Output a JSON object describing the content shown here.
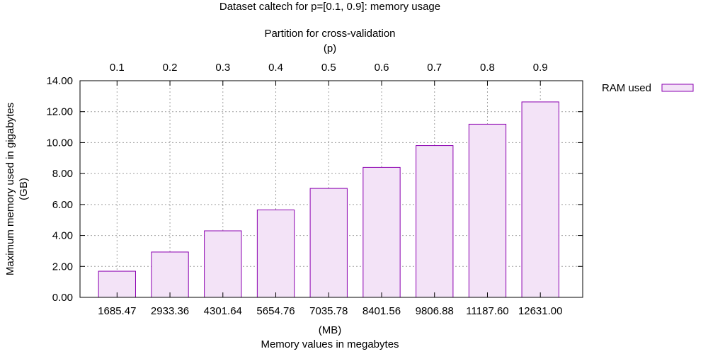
{
  "chart_data": {
    "type": "bar",
    "title": "Dataset caltech for p=[0.1, 0.9]: memory usage",
    "top_axis": {
      "label_line1": "Partition for cross-validation",
      "label_line2": "(p)",
      "categories": [
        "0.1",
        "0.2",
        "0.3",
        "0.4",
        "0.5",
        "0.6",
        "0.7",
        "0.8",
        "0.9"
      ]
    },
    "x_axis": {
      "label_line1": "(MB)",
      "label_line2": "Memory values in megabytes",
      "categories": [
        "1685.47",
        "2933.36",
        "4301.64",
        "5654.76",
        "7035.78",
        "8401.56",
        "9806.88",
        "11187.60",
        "12631.00"
      ]
    },
    "y_axis": {
      "label_line1": "Maximum memory used in gigabytes",
      "label_line2": "(GB)",
      "ylim": [
        0,
        14
      ],
      "ticks": [
        "0.00",
        "2.00",
        "4.00",
        "6.00",
        "8.00",
        "10.00",
        "12.00",
        "14.00"
      ]
    },
    "series": [
      {
        "name": "RAM used",
        "values": [
          1.69,
          2.93,
          4.3,
          5.65,
          7.04,
          8.4,
          9.81,
          11.19,
          12.63
        ]
      }
    ],
    "legend_position": "top-right",
    "grid": true,
    "colors": {
      "bar_fill": "#f3e3f7",
      "bar_stroke": "#8b00b0"
    }
  }
}
